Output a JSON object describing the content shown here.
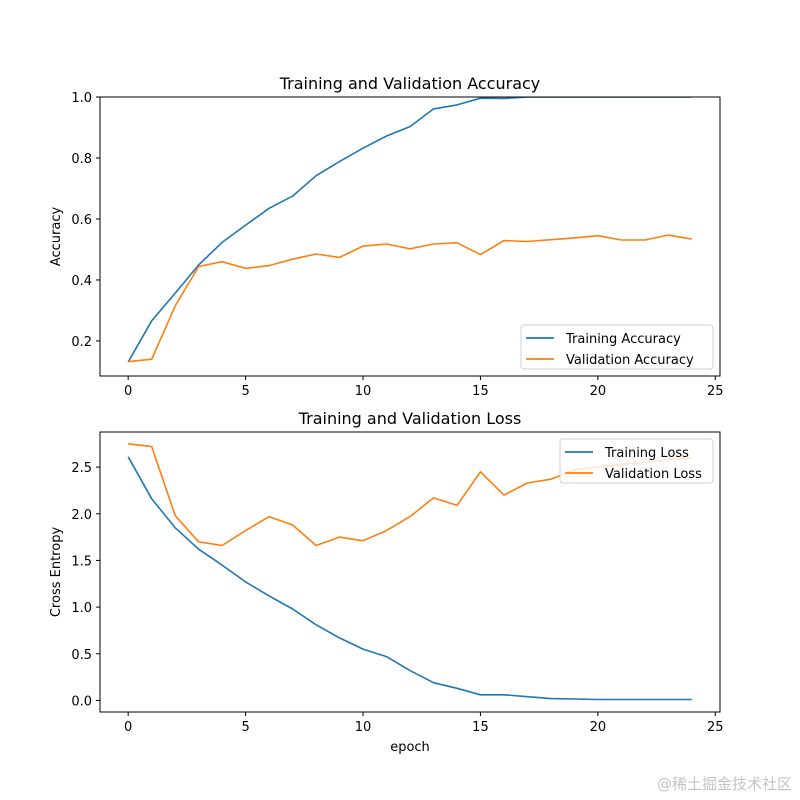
{
  "chart_data": [
    {
      "type": "line",
      "title": "Training and Validation Accuracy",
      "xlabel": "",
      "ylabel": "Accuracy",
      "xlim": [
        -1.2,
        25.2
      ],
      "ylim": [
        0.085,
        1.0
      ],
      "xticks": [
        0,
        5,
        10,
        15,
        20,
        25
      ],
      "yticks": [
        0.2,
        0.4,
        0.6,
        0.8,
        1.0
      ],
      "ytick_labels": [
        "0.2",
        "0.4",
        "0.6",
        "0.8",
        "1.0"
      ],
      "grid": false,
      "legend_position": "lower-right",
      "x": [
        0,
        1,
        2,
        3,
        4,
        5,
        6,
        7,
        8,
        9,
        10,
        11,
        12,
        13,
        14,
        15,
        16,
        17,
        18,
        19,
        20,
        21,
        22,
        23,
        24
      ],
      "series": [
        {
          "name": "Training Accuracy",
          "color": "#1f77b4",
          "values": [
            0.131,
            0.266,
            0.357,
            0.449,
            0.523,
            0.58,
            0.635,
            0.675,
            0.742,
            0.788,
            0.832,
            0.872,
            0.903,
            0.961,
            0.974,
            0.996,
            0.995,
            1.0,
            1.0,
            1.0,
            1.0,
            1.0,
            1.0,
            1.0,
            1.0
          ]
        },
        {
          "name": "Validation Accuracy",
          "color": "#ff7f0e",
          "values": [
            0.132,
            0.14,
            0.315,
            0.444,
            0.46,
            0.438,
            0.447,
            0.468,
            0.485,
            0.474,
            0.511,
            0.518,
            0.502,
            0.518,
            0.522,
            0.483,
            0.529,
            0.526,
            0.532,
            0.538,
            0.545,
            0.531,
            0.531,
            0.547,
            0.534
          ]
        }
      ]
    },
    {
      "type": "line",
      "title": "Training and Validation Loss",
      "xlabel": "epoch",
      "ylabel": "Cross Entropy",
      "xlim": [
        -1.2,
        25.2
      ],
      "ylim": [
        -0.124,
        2.876
      ],
      "xticks": [
        0,
        5,
        10,
        15,
        20,
        25
      ],
      "yticks": [
        0.0,
        0.5,
        1.0,
        1.5,
        2.0,
        2.5
      ],
      "ytick_labels": [
        "0.0",
        "0.5",
        "1.0",
        "1.5",
        "2.0",
        "2.5"
      ],
      "grid": false,
      "legend_position": "upper-right",
      "x": [
        0,
        1,
        2,
        3,
        4,
        5,
        6,
        7,
        8,
        9,
        10,
        11,
        12,
        13,
        14,
        15,
        16,
        17,
        18,
        19,
        20,
        21,
        22,
        23,
        24
      ],
      "series": [
        {
          "name": "Training Loss",
          "color": "#1f77b4",
          "values": [
            2.61,
            2.16,
            1.85,
            1.62,
            1.45,
            1.27,
            1.12,
            0.98,
            0.81,
            0.67,
            0.55,
            0.47,
            0.32,
            0.19,
            0.13,
            0.06,
            0.06,
            0.04,
            0.02,
            0.015,
            0.01,
            0.01,
            0.01,
            0.01,
            0.01
          ]
        },
        {
          "name": "Validation Loss",
          "color": "#ff7f0e",
          "values": [
            2.75,
            2.72,
            1.98,
            1.7,
            1.66,
            1.82,
            1.97,
            1.88,
            1.66,
            1.75,
            1.71,
            1.82,
            1.97,
            2.17,
            2.09,
            2.45,
            2.2,
            2.33,
            2.37,
            2.47,
            2.5,
            2.53,
            2.55,
            2.58,
            2.6
          ]
        }
      ]
    }
  ],
  "watermark": "@稀土掘金技术社区"
}
